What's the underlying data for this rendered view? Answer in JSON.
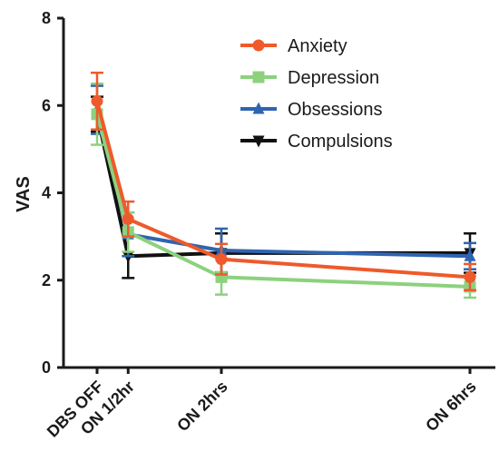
{
  "chart_data": {
    "type": "line",
    "title": "",
    "xlabel": "",
    "ylabel": "VAS",
    "x": [
      0,
      0.5,
      2,
      6
    ],
    "categories": [
      "DBS OFF",
      "ON 1/2hr",
      "ON 2hrs",
      "ON 6hrs"
    ],
    "ylim": [
      0,
      8
    ],
    "yticks": [
      "0",
      "2",
      "4",
      "6",
      "8"
    ],
    "grid": false,
    "legend_position": "top-right",
    "series": [
      {
        "name": "Compulsions",
        "color": "#111111",
        "marker": "triangle-down",
        "values": [
          5.8,
          2.55,
          2.62,
          2.62
        ],
        "errors": [
          0.4,
          0.5,
          0.45,
          0.45
        ]
      },
      {
        "name": "Obsessions",
        "color": "#2f64b1",
        "marker": "triangle-up",
        "values": [
          5.9,
          3.05,
          2.68,
          2.55
        ],
        "errors": [
          0.55,
          0.5,
          0.5,
          0.3
        ]
      },
      {
        "name": "Depression",
        "color": "#8dd17e",
        "marker": "square",
        "values": [
          5.8,
          3.1,
          2.07,
          1.85
        ],
        "errors": [
          0.7,
          0.45,
          0.4,
          0.25
        ]
      },
      {
        "name": "Anxiety",
        "color": "#ee5a2b",
        "marker": "circle",
        "values": [
          6.1,
          3.4,
          2.48,
          2.07
        ],
        "errors": [
          0.65,
          0.4,
          0.35,
          0.3
        ]
      }
    ],
    "legend_order": [
      "Anxiety",
      "Depression",
      "Obsessions",
      "Compulsions"
    ]
  }
}
